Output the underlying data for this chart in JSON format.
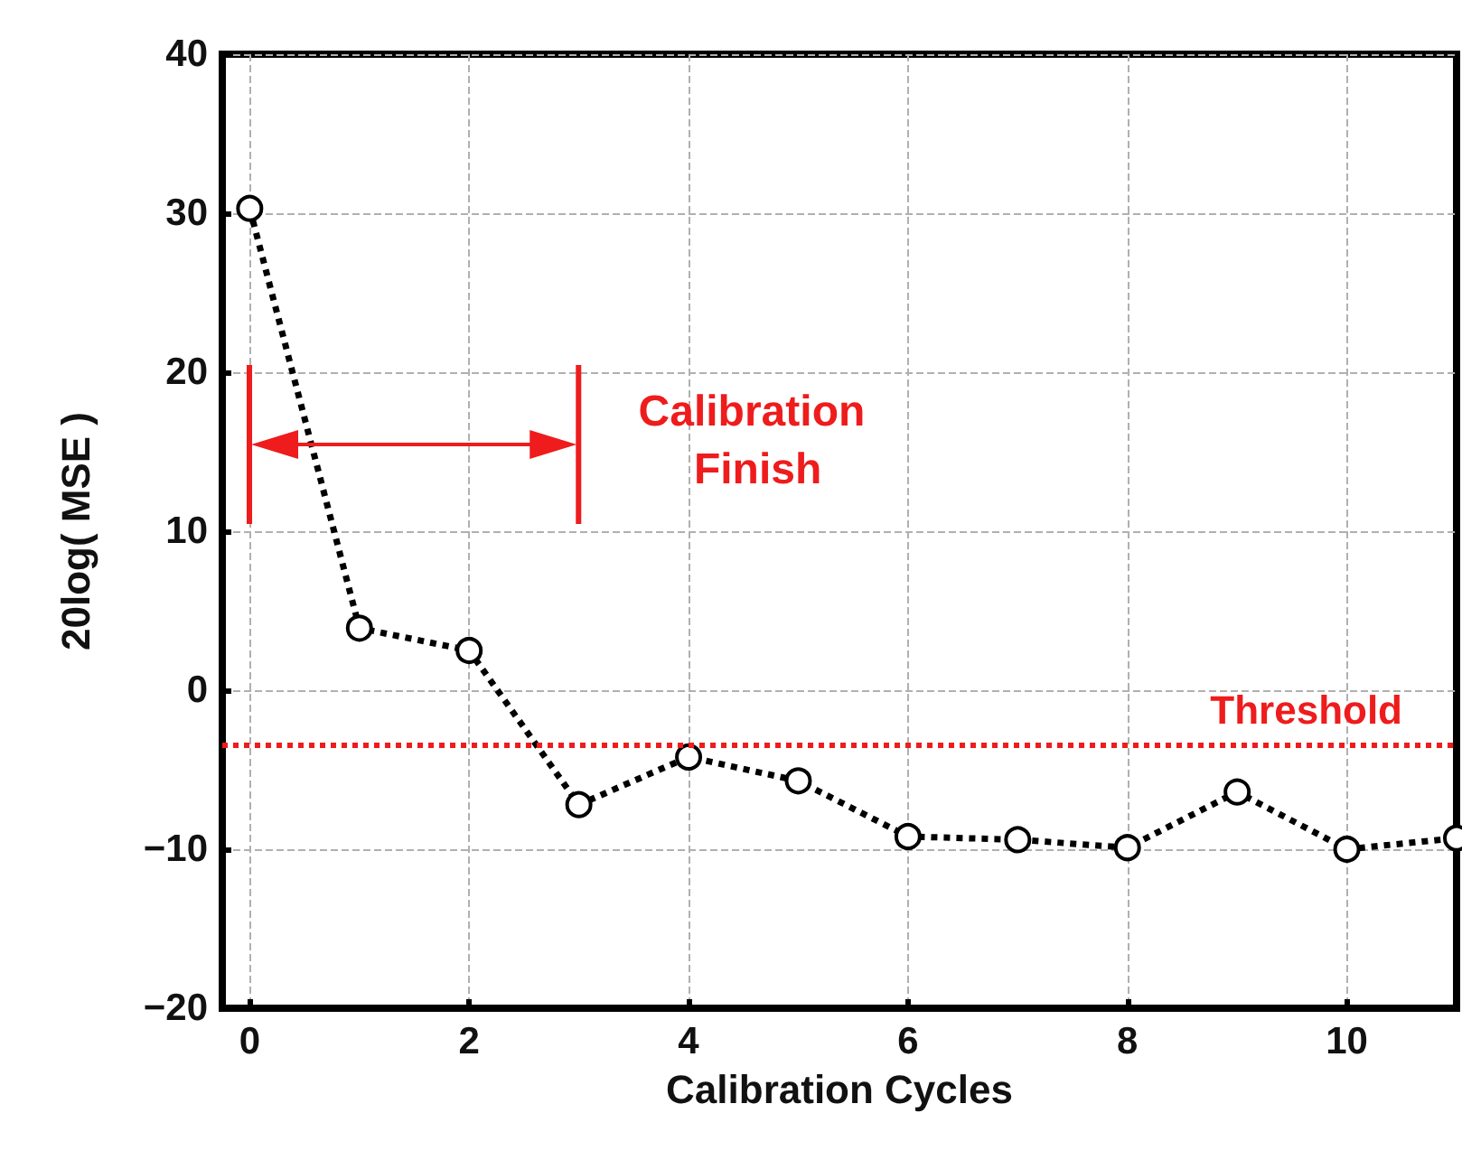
{
  "chart_data": {
    "type": "line",
    "xlabel": "Calibration Cycles",
    "ylabel": "20log( MSE )",
    "x": [
      0,
      1,
      2,
      3,
      4,
      5,
      6,
      7,
      8,
      9,
      10,
      11
    ],
    "series": [
      {
        "color": "#000000",
        "values": [
          30.3,
          3.9,
          2.5,
          -7.2,
          -4.2,
          -5.7,
          -9.2,
          -9.4,
          -9.9,
          -6.4,
          -10,
          -9.3
        ]
      }
    ],
    "xlim": [
      -0.25,
      11
    ],
    "xticks": [
      0,
      2,
      4,
      6,
      8,
      10
    ],
    "ylim": [
      -20,
      40
    ],
    "yticks": [
      -20,
      -10,
      0,
      10,
      20,
      30,
      40
    ],
    "ref_lines": [
      {
        "axis": "y",
        "value": -3.4,
        "label": "Threshold",
        "color": "#ee1c1c",
        "line_style": "dotted"
      }
    ],
    "annotations": [
      "Calibration Finish"
    ],
    "grid": true,
    "marker": "circle",
    "line_style": "dotted"
  }
}
